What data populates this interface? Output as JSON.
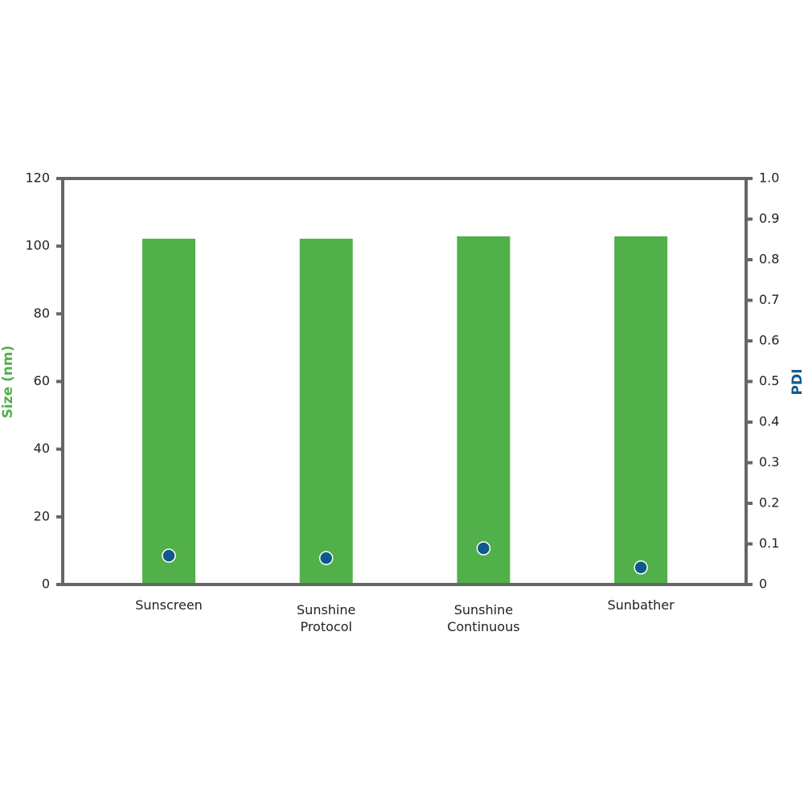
{
  "chart_data": {
    "type": "bar",
    "categories": [
      "Sunscreen",
      "Sunshine Protocol",
      "Sunshine Continuous",
      "Sunbather"
    ],
    "series": [
      {
        "name": "Size (nm)",
        "color": "#52b04a",
        "values": [
          102.2,
          102.2,
          102.9,
          102.9
        ]
      },
      {
        "name": "PDI",
        "color": "#0f5a8c",
        "axis": "y2",
        "type": "scatter",
        "values": [
          0.071,
          0.065,
          0.089,
          0.042
        ]
      }
    ],
    "ylabel": "Size (nm)",
    "y2label": "PDI",
    "ylim": [
      0,
      120
    ],
    "yticks": [
      0,
      20,
      40,
      60,
      80,
      100,
      120
    ],
    "y2lim": [
      0,
      1.0
    ],
    "y2ticks": [
      0,
      0.1,
      0.2,
      0.3,
      0.4,
      0.5,
      0.6,
      0.7,
      0.8,
      0.9,
      {
        "value": 1.0,
        "label": "1.0"
      }
    ],
    "grid": false
  }
}
